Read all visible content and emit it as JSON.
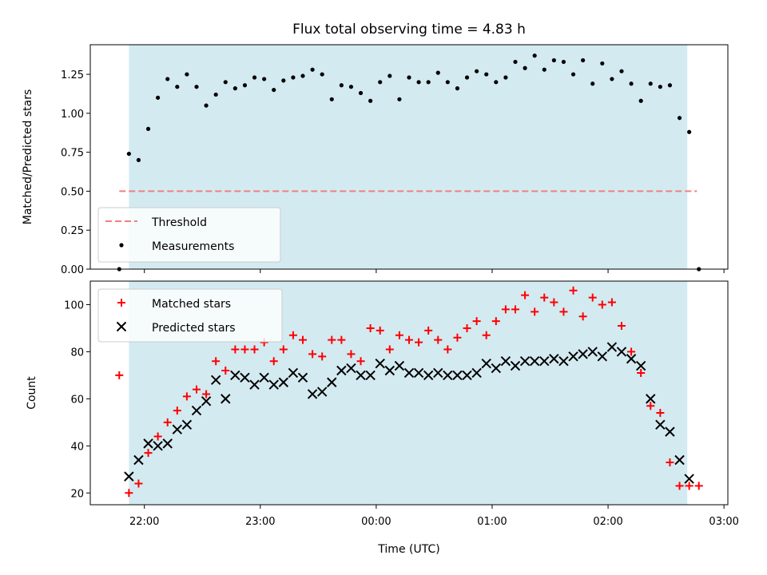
{
  "chart_data": [
    {
      "type": "scatter",
      "title": "Flux total observing time = 4.83 h",
      "xlabel": "",
      "ylabel": "Matched/Predicted stars",
      "xlim": [
        "21:32",
        "03:02"
      ],
      "ylim": [
        0,
        1.44
      ],
      "yticks": [
        "0.00",
        "0.25",
        "0.50",
        "0.75",
        "1.00",
        "1.25"
      ],
      "grid": false,
      "legend_position": "lower-left",
      "shaded_interval": {
        "start": "21:52",
        "end": "02:41",
        "color": "#d3eaf1"
      },
      "threshold": {
        "name": "Threshold",
        "value": 0.5,
        "x_range": [
          "21:47",
          "02:46"
        ],
        "color": "#f08080",
        "style": "dashed"
      },
      "series": [
        {
          "name": "Measurements",
          "color": "#000000",
          "marker": "dot",
          "x": [
            "21:47",
            "21:52",
            "21:57",
            "22:02",
            "22:07",
            "22:12",
            "22:17",
            "22:22",
            "22:27",
            "22:32",
            "22:37",
            "22:42",
            "22:47",
            "22:52",
            "22:57",
            "23:02",
            "23:07",
            "23:12",
            "23:17",
            "23:22",
            "23:27",
            "23:32",
            "23:37",
            "23:42",
            "23:47",
            "23:52",
            "23:57",
            "00:02",
            "00:07",
            "00:12",
            "00:17",
            "00:22",
            "00:27",
            "00:32",
            "00:37",
            "00:42",
            "00:47",
            "00:52",
            "00:57",
            "01:02",
            "01:07",
            "01:12",
            "01:17",
            "01:22",
            "01:27",
            "01:32",
            "01:37",
            "01:42",
            "01:47",
            "01:52",
            "01:57",
            "02:02",
            "02:07",
            "02:12",
            "02:17",
            "02:22",
            "02:27",
            "02:32",
            "02:37",
            "02:42",
            "02:47"
          ],
          "y": [
            0.0,
            0.74,
            0.7,
            0.9,
            1.1,
            1.22,
            1.17,
            1.25,
            1.17,
            1.05,
            1.12,
            1.2,
            1.16,
            1.18,
            1.23,
            1.22,
            1.15,
            1.21,
            1.23,
            1.24,
            1.28,
            1.25,
            1.09,
            1.18,
            1.17,
            1.13,
            1.08,
            1.2,
            1.24,
            1.09,
            1.23,
            1.2,
            1.2,
            1.26,
            1.2,
            1.16,
            1.23,
            1.27,
            1.25,
            1.2,
            1.23,
            1.33,
            1.29,
            1.37,
            1.28,
            1.34,
            1.33,
            1.25,
            1.34,
            1.19,
            1.32,
            1.22,
            1.27,
            1.19,
            1.08,
            1.19,
            1.17,
            1.18,
            0.97,
            0.88,
            0.0
          ]
        }
      ]
    },
    {
      "type": "scatter",
      "title": "",
      "xlabel": "Time (UTC)",
      "ylabel": "Count",
      "xlim": [
        "21:32",
        "03:02"
      ],
      "ylim": [
        15,
        110
      ],
      "xticks": [
        "22:00",
        "23:00",
        "00:00",
        "01:00",
        "02:00",
        "03:00"
      ],
      "yticks": [
        "20",
        "40",
        "60",
        "80",
        "100"
      ],
      "grid": false,
      "legend_position": "upper-left",
      "shaded_interval": {
        "start": "21:52",
        "end": "02:41",
        "color": "#d3eaf1"
      },
      "series": [
        {
          "name": "Matched stars",
          "color": "#ff0000",
          "marker": "plus",
          "x": [
            "21:47",
            "21:52",
            "21:57",
            "22:02",
            "22:07",
            "22:12",
            "22:17",
            "22:22",
            "22:27",
            "22:32",
            "22:37",
            "22:42",
            "22:47",
            "22:52",
            "22:57",
            "23:02",
            "23:07",
            "23:12",
            "23:17",
            "23:22",
            "23:27",
            "23:32",
            "23:37",
            "23:42",
            "23:47",
            "23:52",
            "23:57",
            "00:02",
            "00:07",
            "00:12",
            "00:17",
            "00:22",
            "00:27",
            "00:32",
            "00:37",
            "00:42",
            "00:47",
            "00:52",
            "00:57",
            "01:02",
            "01:07",
            "01:12",
            "01:17",
            "01:22",
            "01:27",
            "01:32",
            "01:37",
            "01:42",
            "01:47",
            "01:52",
            "01:57",
            "02:02",
            "02:07",
            "02:12",
            "02:17",
            "02:22",
            "02:27",
            "02:32",
            "02:37",
            "02:42",
            "02:47"
          ],
          "y": [
            70,
            20,
            24,
            37,
            44,
            50,
            55,
            61,
            64,
            62,
            76,
            72,
            81,
            81,
            81,
            84,
            76,
            81,
            87,
            85,
            79,
            78,
            85,
            85,
            79,
            76,
            90,
            89,
            81,
            87,
            85,
            84,
            89,
            85,
            81,
            86,
            90,
            93,
            87,
            93,
            98,
            98,
            104,
            97,
            103,
            101,
            97,
            106,
            95,
            103,
            100,
            101,
            91,
            80,
            71,
            57,
            54,
            33,
            23,
            23,
            23
          ]
        },
        {
          "name": "Predicted stars",
          "color": "#000000",
          "marker": "x",
          "x": [
            "21:52",
            "21:57",
            "22:02",
            "22:07",
            "22:12",
            "22:17",
            "22:22",
            "22:27",
            "22:32",
            "22:37",
            "22:42",
            "22:47",
            "22:52",
            "22:57",
            "23:02",
            "23:07",
            "23:12",
            "23:17",
            "23:22",
            "23:27",
            "23:32",
            "23:37",
            "23:42",
            "23:47",
            "23:52",
            "23:57",
            "00:02",
            "00:07",
            "00:12",
            "00:17",
            "00:22",
            "00:27",
            "00:32",
            "00:37",
            "00:42",
            "00:47",
            "00:52",
            "00:57",
            "01:02",
            "01:07",
            "01:12",
            "01:17",
            "01:22",
            "01:27",
            "01:32",
            "01:37",
            "01:42",
            "01:47",
            "01:52",
            "01:57",
            "02:02",
            "02:07",
            "02:12",
            "02:17",
            "02:22",
            "02:27",
            "02:32",
            "02:37",
            "02:42"
          ],
          "y": [
            27,
            34,
            41,
            40,
            41,
            47,
            49,
            55,
            59,
            68,
            60,
            70,
            69,
            66,
            69,
            66,
            67,
            71,
            69,
            62,
            63,
            67,
            72,
            73,
            70,
            70,
            75,
            72,
            74,
            71,
            71,
            70,
            71,
            70,
            70,
            70,
            71,
            75,
            73,
            76,
            74,
            76,
            76,
            76,
            77,
            76,
            78,
            79,
            80,
            78,
            82,
            80,
            77,
            74,
            60,
            49,
            46,
            34,
            26
          ]
        }
      ]
    }
  ]
}
